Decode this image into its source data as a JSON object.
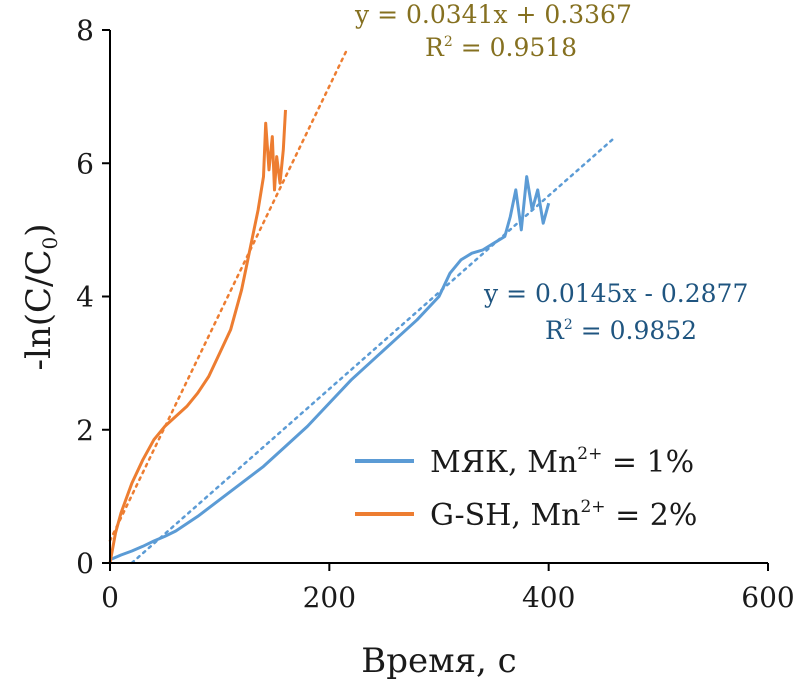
{
  "chart_data": {
    "type": "line",
    "xlabel": "Время, с",
    "ylabel": {
      "prefix": "-ln(C/C",
      "sub": "0",
      "suffix": ")"
    },
    "xlim": [
      0,
      600
    ],
    "ylim": [
      0,
      8
    ],
    "x_ticks": [
      0,
      200,
      400,
      600
    ],
    "y_ticks": [
      0,
      2,
      4,
      6,
      8
    ],
    "grid": false,
    "legend_position": "bottom-right",
    "series": [
      {
        "key": "myak",
        "name_main": "МЯК, Mn",
        "name_sup": "2+",
        "name_tail": " = 1%",
        "color": "#5b9bd5",
        "x": [
          0,
          10,
          20,
          30,
          40,
          50,
          60,
          80,
          100,
          120,
          140,
          160,
          180,
          200,
          220,
          240,
          260,
          280,
          300,
          310,
          320,
          330,
          340,
          350,
          360,
          365,
          370,
          375,
          380,
          385,
          390,
          395,
          400
        ],
        "y": [
          0.05,
          0.12,
          0.18,
          0.25,
          0.33,
          0.4,
          0.48,
          0.7,
          0.95,
          1.2,
          1.45,
          1.75,
          2.05,
          2.4,
          2.75,
          3.05,
          3.35,
          3.65,
          4.0,
          4.35,
          4.55,
          4.65,
          4.7,
          4.8,
          4.9,
          5.2,
          5.6,
          5.0,
          5.8,
          5.3,
          5.6,
          5.1,
          5.4
        ]
      },
      {
        "key": "gsh",
        "name_main": "G-SH, Mn",
        "name_sup": "2+",
        "name_tail": " = 2%",
        "color": "#ed7d31",
        "x": [
          0,
          5,
          10,
          20,
          30,
          40,
          50,
          60,
          70,
          80,
          90,
          100,
          110,
          120,
          125,
          130,
          135,
          140,
          142,
          145,
          148,
          150,
          152,
          155,
          158,
          160
        ],
        "y": [
          0.0,
          0.45,
          0.75,
          1.2,
          1.55,
          1.85,
          2.05,
          2.2,
          2.35,
          2.55,
          2.8,
          3.15,
          3.5,
          4.1,
          4.5,
          4.9,
          5.3,
          5.8,
          6.6,
          5.9,
          6.4,
          5.6,
          6.1,
          5.7,
          6.2,
          6.8
        ]
      }
    ],
    "trendlines": [
      {
        "series": "myak",
        "slope": 0.0145,
        "intercept": -0.2877,
        "x_range": [
          20,
          460
        ],
        "color": "#5b9bd5"
      },
      {
        "series": "gsh",
        "slope": 0.0341,
        "intercept": 0.3367,
        "x_range": [
          0,
          217
        ],
        "color": "#ed7d31"
      }
    ],
    "annotations": [
      {
        "series": "gsh",
        "equation": "y = 0.0341x + 0.3367",
        "r2_label": "R",
        "r2_sup": "2",
        "r2_value": " = 0.9518",
        "color": "#857020"
      },
      {
        "series": "myak",
        "equation": "y = 0.0145x - 0.2877",
        "r2_label": "R",
        "r2_sup": "2",
        "r2_value": " = 0.9852",
        "color": "#1f5580"
      }
    ]
  }
}
